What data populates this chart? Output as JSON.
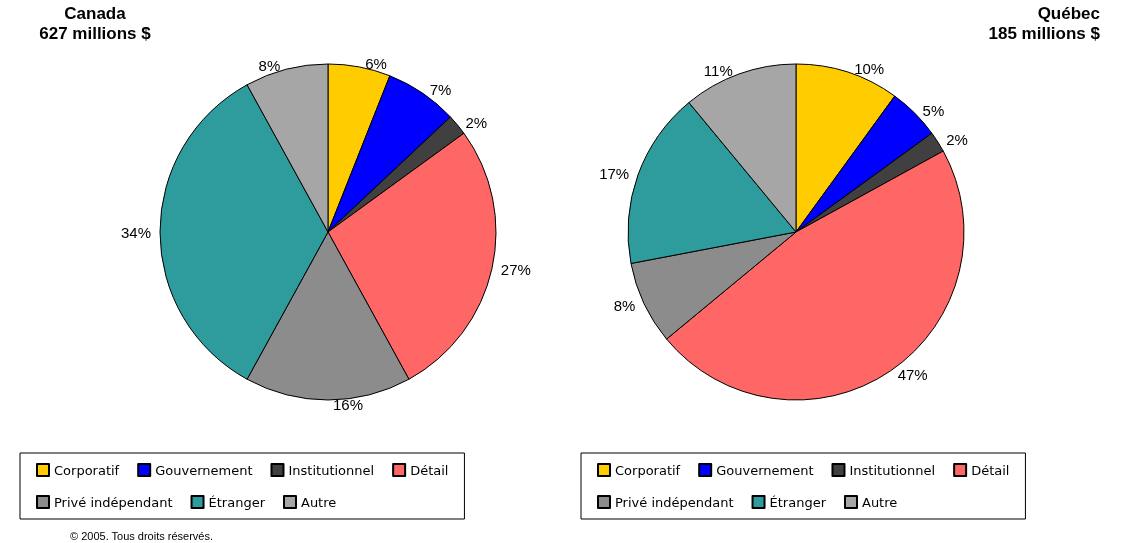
{
  "chart_data": [
    {
      "type": "pie",
      "title": "Canada",
      "subtitle": "627 millions $",
      "categories": [
        "Corporatif",
        "Gouvernement",
        "Institutionnel",
        "Détail",
        "Privé indépendant",
        "Étranger",
        "Autre"
      ],
      "values": [
        6,
        7,
        2,
        27,
        16,
        34,
        8
      ],
      "value_labels": [
        "6%",
        "7%",
        "2%",
        "27%",
        "16%",
        "34%",
        "8%"
      ],
      "colors": [
        "#ffcc00",
        "#0000ff",
        "#404040",
        "#ff6666",
        "#8c8c8c",
        "#2e9c9c",
        "#a6a6a6"
      ],
      "legend": "bottom",
      "annotations": [
        "© 2005. Tous droits réservés."
      ]
    },
    {
      "type": "pie",
      "title": "Québec",
      "subtitle": "185 millions $",
      "categories": [
        "Corporatif",
        "Gouvernement",
        "Institutionnel",
        "Détail",
        "Privé indépendant",
        "Étranger",
        "Autre"
      ],
      "values": [
        10,
        5,
        2,
        47,
        8,
        17,
        11
      ],
      "value_labels": [
        "10%",
        "5%",
        "2%",
        "47%",
        "8%",
        "17%",
        "11%"
      ],
      "legend": "bottom",
      "colors": [
        "#ffcc00",
        "#0000ff",
        "#404040",
        "#ff6666",
        "#8c8c8c",
        "#2e9c9c",
        "#a6a6a6"
      ]
    }
  ]
}
